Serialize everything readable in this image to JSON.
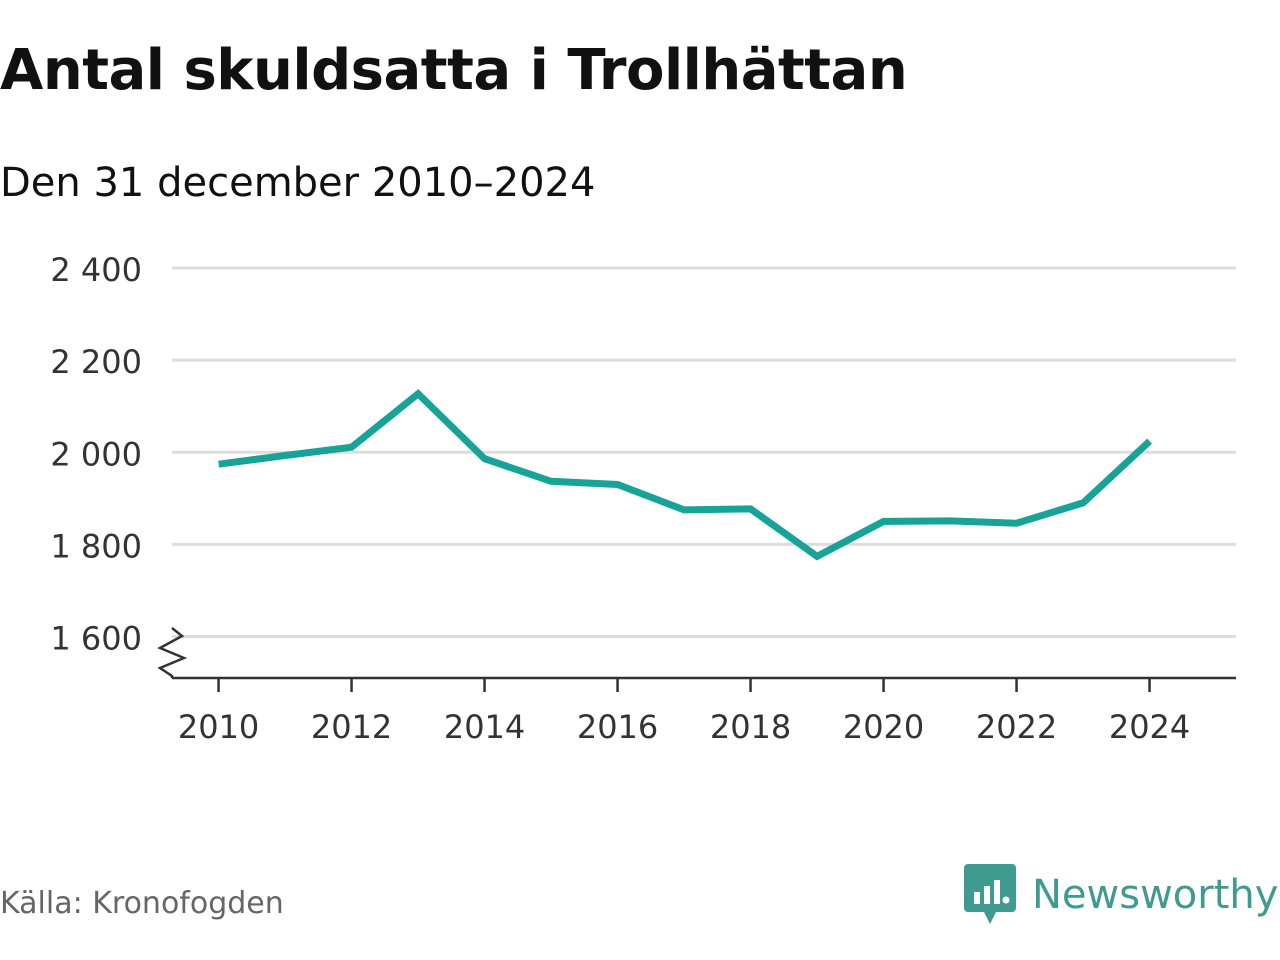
{
  "header": {
    "title": "Antal skuldsatta i Trollhättan",
    "subtitle": "Den 31 december 2010–2024"
  },
  "footer": {
    "source": "Källa: Kronofogden",
    "brand_name": "Newsworthy",
    "brand_icon": "newsworthy-logo-icon"
  },
  "colors": {
    "line": "#17a398",
    "grid": "#dddddd",
    "axis": "#333333",
    "tick_text": "#333333",
    "brand": "#3f9a90"
  },
  "chart_data": {
    "type": "line",
    "title": "Antal skuldsatta i Trollhättan",
    "subtitle": "Den 31 december 2010–2024",
    "xlabel": "",
    "ylabel": "",
    "x": [
      2010,
      2011,
      2012,
      2013,
      2014,
      2015,
      2016,
      2017,
      2018,
      2019,
      2020,
      2021,
      2022,
      2023,
      2024
    ],
    "series": [
      {
        "values": [
          1974,
          1993,
          2011,
          2127,
          1986,
          1937,
          1930,
          1875,
          1877,
          1774,
          1850,
          1851,
          1846,
          1890,
          2024
        ]
      }
    ],
    "xlim": [
      2009.3,
      2025.3
    ],
    "ylim": [
      1510,
      2400
    ],
    "y_ticks": [
      1600,
      1800,
      2000,
      2200,
      2400
    ],
    "y_tick_labels": [
      "1 600",
      "1 800",
      "2 000",
      "2 200",
      "2 400"
    ],
    "x_ticks": [
      2010,
      2012,
      2014,
      2016,
      2018,
      2020,
      2022,
      2024
    ],
    "x_tick_labels": [
      "2010",
      "2012",
      "2014",
      "2016",
      "2018",
      "2020",
      "2022",
      "2024"
    ],
    "y_axis_break": true,
    "grid": true,
    "legend": "none"
  }
}
